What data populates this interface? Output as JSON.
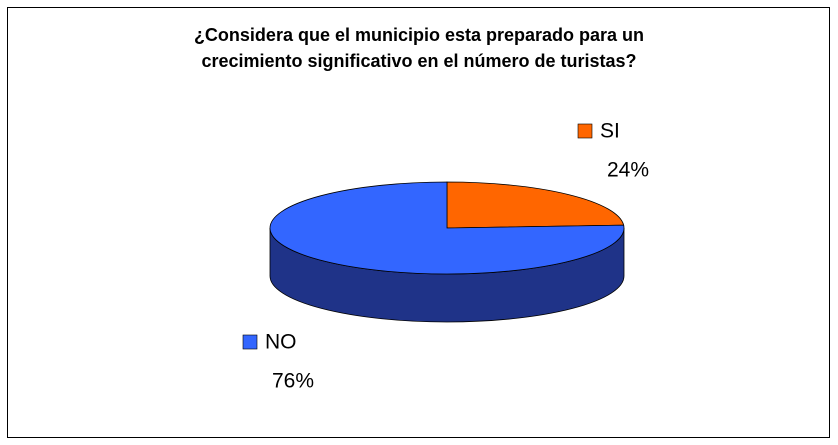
{
  "chart_data": {
    "type": "pie",
    "pie_style": "3d",
    "title": "¿Considera que el municipio esta preparado para un crecimiento significativo en el número de turistas?",
    "categories": [
      "SI",
      "NO"
    ],
    "values": [
      24,
      76
    ],
    "value_labels": [
      "24%",
      "76%"
    ],
    "colors": [
      "#ff6600",
      "#3366ff"
    ],
    "side_colors": [
      "#b34700",
      "#1f3388"
    ]
  }
}
